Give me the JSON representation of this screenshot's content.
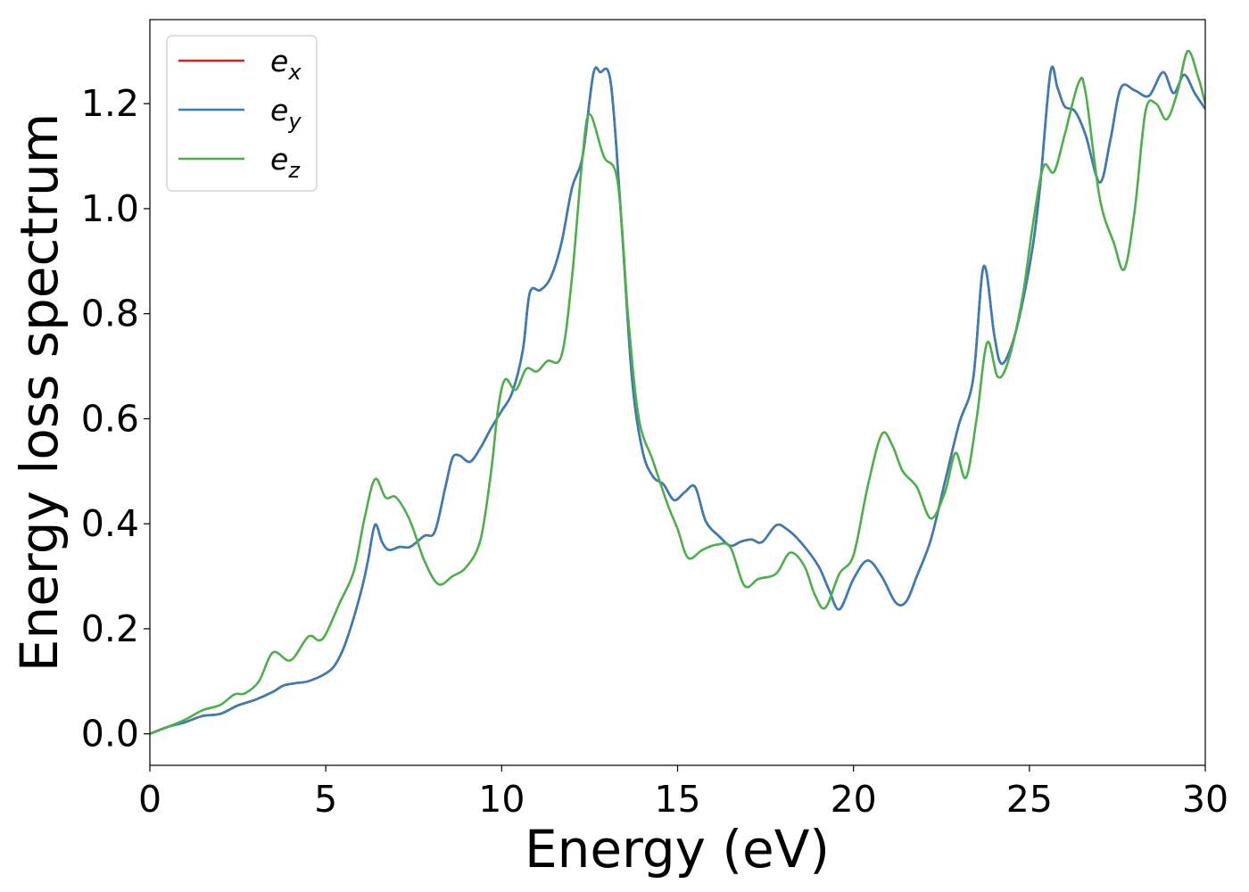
{
  "chart_data": {
    "type": "line",
    "xlabel": "Energy (eV)",
    "ylabel": "Energy loss spectrum",
    "xlim": [
      0,
      30
    ],
    "ylim": [
      -0.06,
      1.36
    ],
    "x_ticks": [
      0,
      5,
      10,
      15,
      20,
      25,
      30
    ],
    "x_tick_labels": [
      "0",
      "5",
      "10",
      "15",
      "20",
      "25",
      "30"
    ],
    "y_ticks": [
      0.0,
      0.2,
      0.4,
      0.6,
      0.8,
      1.0,
      1.2
    ],
    "y_tick_labels": [
      "0.0",
      "0.2",
      "0.4",
      "0.6",
      "0.8",
      "1.0",
      "1.2"
    ],
    "grid": false,
    "legend_position": "top-left",
    "legend": [
      {
        "base": "e",
        "sub": "x",
        "color": "#e41a1c"
      },
      {
        "base": "e",
        "sub": "y",
        "color": "#377eb8"
      },
      {
        "base": "e",
        "sub": "z",
        "color": "#4daf4a"
      }
    ],
    "series": [
      {
        "name": "e_x",
        "color": "#e41a1c",
        "points": [
          [
            0,
            0.0
          ],
          [
            0.5,
            0.013
          ],
          [
            1,
            0.022
          ],
          [
            1.5,
            0.034
          ],
          [
            2,
            0.038
          ],
          [
            2.5,
            0.054
          ],
          [
            3,
            0.065
          ],
          [
            3.5,
            0.08
          ],
          [
            3.8,
            0.092
          ],
          [
            4.2,
            0.097
          ],
          [
            4.5,
            0.1
          ],
          [
            5,
            0.115
          ],
          [
            5.3,
            0.135
          ],
          [
            5.6,
            0.18
          ],
          [
            6,
            0.27
          ],
          [
            6.2,
            0.33
          ],
          [
            6.4,
            0.398
          ],
          [
            6.6,
            0.365
          ],
          [
            6.8,
            0.35
          ],
          [
            7.1,
            0.356
          ],
          [
            7.4,
            0.356
          ],
          [
            7.8,
            0.377
          ],
          [
            8.1,
            0.385
          ],
          [
            8.4,
            0.47
          ],
          [
            8.6,
            0.525
          ],
          [
            8.8,
            0.53
          ],
          [
            9.1,
            0.518
          ],
          [
            9.4,
            0.545
          ],
          [
            9.7,
            0.582
          ],
          [
            10,
            0.615
          ],
          [
            10.3,
            0.65
          ],
          [
            10.6,
            0.73
          ],
          [
            10.8,
            0.84
          ],
          [
            11.1,
            0.845
          ],
          [
            11.4,
            0.87
          ],
          [
            11.7,
            0.935
          ],
          [
            12,
            1.04
          ],
          [
            12.3,
            1.1
          ],
          [
            12.6,
            1.255
          ],
          [
            12.8,
            1.26
          ],
          [
            13.1,
            1.24
          ],
          [
            13.4,
            0.98
          ],
          [
            13.7,
            0.68
          ],
          [
            14,
            0.54
          ],
          [
            14.3,
            0.49
          ],
          [
            14.6,
            0.475
          ],
          [
            14.9,
            0.445
          ],
          [
            15.2,
            0.46
          ],
          [
            15.5,
            0.47
          ],
          [
            15.8,
            0.405
          ],
          [
            16.2,
            0.375
          ],
          [
            16.5,
            0.358
          ],
          [
            16.8,
            0.366
          ],
          [
            17.1,
            0.37
          ],
          [
            17.4,
            0.365
          ],
          [
            17.8,
            0.397
          ],
          [
            18.1,
            0.39
          ],
          [
            18.5,
            0.365
          ],
          [
            19,
            0.32
          ],
          [
            19.3,
            0.275
          ],
          [
            19.6,
            0.237
          ],
          [
            20,
            0.295
          ],
          [
            20.4,
            0.33
          ],
          [
            20.8,
            0.3
          ],
          [
            21.2,
            0.25
          ],
          [
            21.5,
            0.252
          ],
          [
            21.8,
            0.3
          ],
          [
            22.2,
            0.37
          ],
          [
            22.6,
            0.48
          ],
          [
            23,
            0.59
          ],
          [
            23.4,
            0.675
          ],
          [
            23.7,
            0.89
          ],
          [
            24,
            0.76
          ],
          [
            24.2,
            0.705
          ],
          [
            24.5,
            0.74
          ],
          [
            24.8,
            0.82
          ],
          [
            25.1,
            0.93
          ],
          [
            25.3,
            1.04
          ],
          [
            25.6,
            1.26
          ],
          [
            25.8,
            1.23
          ],
          [
            26,
            1.195
          ],
          [
            26.3,
            1.185
          ],
          [
            26.6,
            1.14
          ],
          [
            27,
            1.05
          ],
          [
            27.3,
            1.13
          ],
          [
            27.6,
            1.23
          ],
          [
            28,
            1.225
          ],
          [
            28.4,
            1.215
          ],
          [
            28.8,
            1.26
          ],
          [
            29.1,
            1.22
          ],
          [
            29.4,
            1.255
          ],
          [
            29.7,
            1.22
          ],
          [
            30,
            1.19
          ]
        ]
      },
      {
        "name": "e_y",
        "color": "#377eb8",
        "points": [
          [
            0,
            0.0
          ],
          [
            0.5,
            0.013
          ],
          [
            1,
            0.022
          ],
          [
            1.5,
            0.034
          ],
          [
            2,
            0.038
          ],
          [
            2.5,
            0.054
          ],
          [
            3,
            0.065
          ],
          [
            3.5,
            0.08
          ],
          [
            3.8,
            0.092
          ],
          [
            4.2,
            0.097
          ],
          [
            4.5,
            0.1
          ],
          [
            5,
            0.115
          ],
          [
            5.3,
            0.135
          ],
          [
            5.6,
            0.18
          ],
          [
            6,
            0.27
          ],
          [
            6.2,
            0.33
          ],
          [
            6.4,
            0.398
          ],
          [
            6.6,
            0.365
          ],
          [
            6.8,
            0.35
          ],
          [
            7.1,
            0.356
          ],
          [
            7.4,
            0.356
          ],
          [
            7.8,
            0.377
          ],
          [
            8.1,
            0.385
          ],
          [
            8.4,
            0.47
          ],
          [
            8.6,
            0.525
          ],
          [
            8.8,
            0.53
          ],
          [
            9.1,
            0.518
          ],
          [
            9.4,
            0.545
          ],
          [
            9.7,
            0.582
          ],
          [
            10,
            0.615
          ],
          [
            10.3,
            0.65
          ],
          [
            10.6,
            0.73
          ],
          [
            10.8,
            0.84
          ],
          [
            11.1,
            0.845
          ],
          [
            11.4,
            0.87
          ],
          [
            11.7,
            0.935
          ],
          [
            12,
            1.04
          ],
          [
            12.3,
            1.1
          ],
          [
            12.6,
            1.255
          ],
          [
            12.8,
            1.26
          ],
          [
            13.1,
            1.24
          ],
          [
            13.4,
            0.98
          ],
          [
            13.7,
            0.68
          ],
          [
            14,
            0.54
          ],
          [
            14.3,
            0.49
          ],
          [
            14.6,
            0.475
          ],
          [
            14.9,
            0.445
          ],
          [
            15.2,
            0.46
          ],
          [
            15.5,
            0.47
          ],
          [
            15.8,
            0.405
          ],
          [
            16.2,
            0.375
          ],
          [
            16.5,
            0.358
          ],
          [
            16.8,
            0.366
          ],
          [
            17.1,
            0.37
          ],
          [
            17.4,
            0.365
          ],
          [
            17.8,
            0.397
          ],
          [
            18.1,
            0.39
          ],
          [
            18.5,
            0.365
          ],
          [
            19,
            0.32
          ],
          [
            19.3,
            0.275
          ],
          [
            19.6,
            0.237
          ],
          [
            20,
            0.295
          ],
          [
            20.4,
            0.33
          ],
          [
            20.8,
            0.3
          ],
          [
            21.2,
            0.25
          ],
          [
            21.5,
            0.252
          ],
          [
            21.8,
            0.3
          ],
          [
            22.2,
            0.37
          ],
          [
            22.6,
            0.48
          ],
          [
            23,
            0.59
          ],
          [
            23.4,
            0.675
          ],
          [
            23.7,
            0.89
          ],
          [
            24,
            0.76
          ],
          [
            24.2,
            0.705
          ],
          [
            24.5,
            0.74
          ],
          [
            24.8,
            0.82
          ],
          [
            25.1,
            0.93
          ],
          [
            25.3,
            1.04
          ],
          [
            25.6,
            1.26
          ],
          [
            25.8,
            1.23
          ],
          [
            26,
            1.195
          ],
          [
            26.3,
            1.185
          ],
          [
            26.6,
            1.14
          ],
          [
            27,
            1.05
          ],
          [
            27.3,
            1.13
          ],
          [
            27.6,
            1.23
          ],
          [
            28,
            1.225
          ],
          [
            28.4,
            1.215
          ],
          [
            28.8,
            1.26
          ],
          [
            29.1,
            1.22
          ],
          [
            29.4,
            1.255
          ],
          [
            29.7,
            1.22
          ],
          [
            30,
            1.19
          ]
        ]
      },
      {
        "name": "e_z",
        "color": "#4daf4a",
        "points": [
          [
            0,
            0.0
          ],
          [
            0.5,
            0.013
          ],
          [
            1,
            0.027
          ],
          [
            1.5,
            0.045
          ],
          [
            2,
            0.055
          ],
          [
            2.4,
            0.075
          ],
          [
            2.7,
            0.077
          ],
          [
            3.1,
            0.1
          ],
          [
            3.5,
            0.155
          ],
          [
            4,
            0.14
          ],
          [
            4.5,
            0.185
          ],
          [
            4.8,
            0.178
          ],
          [
            5,
            0.19
          ],
          [
            5.4,
            0.25
          ],
          [
            5.8,
            0.31
          ],
          [
            6.1,
            0.41
          ],
          [
            6.4,
            0.485
          ],
          [
            6.7,
            0.45
          ],
          [
            7,
            0.45
          ],
          [
            7.4,
            0.405
          ],
          [
            7.8,
            0.33
          ],
          [
            8.2,
            0.285
          ],
          [
            8.6,
            0.3
          ],
          [
            9,
            0.318
          ],
          [
            9.4,
            0.37
          ],
          [
            9.7,
            0.5
          ],
          [
            9.9,
            0.62
          ],
          [
            10.1,
            0.675
          ],
          [
            10.4,
            0.655
          ],
          [
            10.7,
            0.695
          ],
          [
            11,
            0.69
          ],
          [
            11.3,
            0.71
          ],
          [
            11.7,
            0.72
          ],
          [
            12,
            0.87
          ],
          [
            12.3,
            1.1
          ],
          [
            12.5,
            1.18
          ],
          [
            12.9,
            1.1
          ],
          [
            13.3,
            1.05
          ],
          [
            13.6,
            0.79
          ],
          [
            13.9,
            0.6
          ],
          [
            14.3,
            0.52
          ],
          [
            14.7,
            0.44
          ],
          [
            15,
            0.39
          ],
          [
            15.3,
            0.335
          ],
          [
            15.7,
            0.35
          ],
          [
            16.1,
            0.36
          ],
          [
            16.5,
            0.355
          ],
          [
            16.9,
            0.282
          ],
          [
            17.3,
            0.295
          ],
          [
            17.8,
            0.305
          ],
          [
            18.2,
            0.345
          ],
          [
            18.6,
            0.32
          ],
          [
            18.9,
            0.265
          ],
          [
            19.2,
            0.24
          ],
          [
            19.6,
            0.305
          ],
          [
            20,
            0.34
          ],
          [
            20.4,
            0.47
          ],
          [
            20.8,
            0.57
          ],
          [
            21.1,
            0.55
          ],
          [
            21.4,
            0.5
          ],
          [
            21.8,
            0.47
          ],
          [
            22.2,
            0.41
          ],
          [
            22.6,
            0.46
          ],
          [
            22.9,
            0.535
          ],
          [
            23.2,
            0.488
          ],
          [
            23.5,
            0.6
          ],
          [
            23.8,
            0.745
          ],
          [
            24.1,
            0.68
          ],
          [
            24.4,
            0.71
          ],
          [
            24.8,
            0.83
          ],
          [
            25.1,
            0.97
          ],
          [
            25.4,
            1.08
          ],
          [
            25.7,
            1.07
          ],
          [
            26,
            1.14
          ],
          [
            26.4,
            1.24
          ],
          [
            26.6,
            1.22
          ],
          [
            27,
            1.02
          ],
          [
            27.4,
            0.935
          ],
          [
            27.7,
            0.885
          ],
          [
            28,
            1.0
          ],
          [
            28.3,
            1.185
          ],
          [
            28.6,
            1.2
          ],
          [
            28.9,
            1.17
          ],
          [
            29.2,
            1.22
          ],
          [
            29.5,
            1.3
          ],
          [
            29.8,
            1.25
          ],
          [
            30,
            1.2
          ]
        ]
      }
    ]
  }
}
